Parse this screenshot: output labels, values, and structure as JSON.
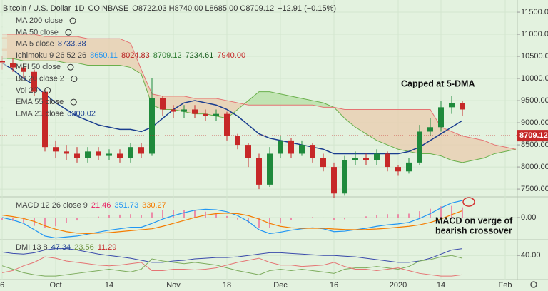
{
  "chart_data": [
    {
      "type": "candlestick",
      "header": {
        "symbol": "Bitcoin / U.S. Dollar",
        "interval": "1D",
        "exchange": "COINBASE",
        "ohlc": "O8722.03 H8740.00 L8685.00 C8709.12",
        "change": "−12.91 (−0.15%)"
      },
      "legend": [
        {
          "label": "MA 200 close",
          "values": [],
          "colors": []
        },
        {
          "label": "MA 50 close",
          "values": [],
          "colors": []
        },
        {
          "label": "MA 5 close",
          "values": [
            "8733.38"
          ],
          "colors": [
            "#1a3d8f"
          ]
        },
        {
          "label": "Ichimoku 9 26 52 26",
          "values": [
            "8650.11",
            "8024.83",
            "8709.12",
            "7234.61",
            "7940.00"
          ],
          "colors": [
            "#2196f3",
            "#b71c1c",
            "#2e7d32",
            "#1b5e20",
            "#c62828"
          ]
        },
        {
          "label": "MFI 50 close",
          "values": [],
          "colors": []
        },
        {
          "label": "BB 20 close 2",
          "values": [],
          "colors": []
        },
        {
          "label": "Vol 20",
          "values": [],
          "colors": []
        },
        {
          "label": "EMA 55 close",
          "values": [],
          "colors": []
        },
        {
          "label": "EMA 21 close",
          "values": [
            "8300.02"
          ],
          "colors": [
            "#1a3d8f"
          ]
        }
      ],
      "categories": [
        "6",
        null,
        null,
        null,
        null,
        "Oct",
        null,
        null,
        null,
        null,
        "14",
        null,
        null,
        null,
        null,
        null,
        "Nov",
        null,
        null,
        null,
        null,
        "18",
        null,
        null,
        null,
        null,
        "Dec",
        null,
        null,
        null,
        null,
        "16",
        null,
        null,
        null,
        null,
        null,
        "2020",
        null,
        null,
        null,
        "14",
        null,
        null,
        null,
        null,
        null,
        "Feb",
        null
      ],
      "open": [
        10400,
        10350,
        10250,
        10150,
        9700,
        8450,
        8350,
        8300,
        8200,
        8350,
        8250,
        8300,
        8200,
        8450,
        8300,
        9550,
        9300,
        9250,
        9300,
        9200,
        9150,
        9200,
        8700,
        8500,
        8200,
        7600,
        8300,
        8600,
        8300,
        8500,
        8200,
        8000,
        7400,
        8150,
        8200,
        8150,
        8300,
        8000,
        7900,
        8100,
        8800,
        8900,
        9350,
        9450,
        null,
        null,
        null,
        null,
        null
      ],
      "high": [
        10500,
        10450,
        10350,
        10200,
        9750,
        8600,
        8500,
        8450,
        8450,
        8450,
        8400,
        8400,
        8550,
        8550,
        10000,
        9600,
        9400,
        9400,
        9400,
        9300,
        9300,
        9250,
        8750,
        8550,
        8300,
        8450,
        8700,
        8650,
        8600,
        8550,
        8300,
        8100,
        8250,
        8350,
        8300,
        8400,
        8350,
        8050,
        8200,
        8950,
        9100,
        9500,
        9600,
        9500,
        null,
        null,
        null,
        null,
        null
      ],
      "low": [
        10200,
        10150,
        10000,
        9600,
        8350,
        8200,
        8150,
        8100,
        8100,
        8150,
        8150,
        8100,
        8100,
        8200,
        8250,
        9150,
        9100,
        9100,
        9100,
        9050,
        9050,
        8600,
        8400,
        8000,
        7500,
        7550,
        8200,
        8200,
        8250,
        8100,
        7900,
        7300,
        7350,
        8050,
        8050,
        8050,
        7900,
        7800,
        7850,
        8050,
        8700,
        8800,
        9200,
        9150,
        null,
        null,
        null,
        null,
        null
      ],
      "close": [
        10350,
        10250,
        10150,
        9700,
        8450,
        8350,
        8300,
        8200,
        8350,
        8250,
        8300,
        8200,
        8450,
        8300,
        9550,
        9300,
        9250,
        9300,
        9200,
        9150,
        9200,
        8700,
        8500,
        8200,
        7600,
        8300,
        8600,
        8300,
        8500,
        8200,
        8000,
        7400,
        8150,
        8200,
        8150,
        8300,
        8000,
        7900,
        8100,
        8800,
        8900,
        9350,
        9450,
        9300,
        null,
        null,
        null,
        null,
        null
      ],
      "up_color": "#1f8a3c",
      "down_color": "#c62828",
      "series": [
        {
          "name": "EMA 21 close",
          "color": "#1a3d8f",
          "values": [
            10350,
            10200,
            10000,
            9850,
            9650,
            9450,
            9300,
            9150,
            9050,
            8950,
            8900,
            8850,
            8850,
            8800,
            8900,
            9100,
            9300,
            9450,
            9500,
            9450,
            9400,
            9300,
            9150,
            8950,
            8750,
            8650,
            8600,
            8550,
            8500,
            8450,
            8400,
            8300,
            8300,
            8300,
            8300,
            8300,
            8300,
            8300,
            8350,
            8450,
            8600,
            8750,
            8900,
            9050,
            null,
            null,
            null,
            null,
            null
          ]
        }
      ],
      "cloud": {
        "up_color": "#b8e0a8",
        "down_color": "#e8cdb0",
        "span_a_color": "#6ab04c",
        "span_b_color": "#e57373",
        "span_a": [
          10450,
          10450,
          10400,
          10400,
          10400,
          10400,
          10350,
          10350,
          10300,
          10300,
          10300,
          10300,
          10250,
          10100,
          9400,
          9300,
          9300,
          9250,
          9200,
          9200,
          9150,
          9100,
          9300,
          9500,
          9700,
          9700,
          9650,
          9600,
          9550,
          9500,
          9450,
          9350,
          9100,
          8900,
          8750,
          8600,
          8500,
          8400,
          8350,
          8300,
          8300,
          8250,
          8150,
          8100,
          8150,
          8200,
          8300,
          8350,
          8400
        ],
        "span_b": [
          11000,
          11000,
          11000,
          11000,
          10950,
          10950,
          10950,
          10950,
          10900,
          10900,
          10900,
          10900,
          10800,
          10200,
          9650,
          9600,
          9600,
          9600,
          9550,
          9550,
          9550,
          9500,
          9450,
          9400,
          9400,
          9400,
          9400,
          9400,
          9400,
          9400,
          9350,
          9350,
          9300,
          9300,
          9300,
          9300,
          9300,
          9300,
          9300,
          9300,
          9300,
          8900,
          8800,
          8700,
          8650,
          8600,
          8500,
          8450,
          8400
        ]
      },
      "ylim": [
        7340,
        11775
      ],
      "yticks": [
        {
          "value": 7500,
          "label": "7500.00"
        },
        {
          "value": 8000,
          "label": "8000.00"
        },
        {
          "value": 8500,
          "label": "8500.00"
        },
        {
          "value": 9000,
          "label": "9000.00"
        },
        {
          "value": 9500,
          "label": "9500.00"
        },
        {
          "value": 10000,
          "label": "10000.00"
        },
        {
          "value": 10500,
          "label": "10500.00"
        },
        {
          "value": 11000,
          "label": "11000.00"
        },
        {
          "value": 11500,
          "label": "11500.00"
        }
      ],
      "price_tag": 8709.12,
      "annotation": "Capped at 5-DMA",
      "grid": true
    },
    {
      "type": "macd",
      "legend": {
        "label": "MACD 12 26 close 9",
        "values": [
          "21.46",
          "351.73",
          "330.27"
        ],
        "colors": [
          "#e91e63",
          "#2196f3",
          "#f57c00"
        ]
      },
      "series": [
        {
          "name": "MACD",
          "color": "#2196f3",
          "values": [
            0,
            -50,
            -120,
            -250,
            -380,
            -420,
            -400,
            -380,
            -340,
            -300,
            -260,
            -230,
            -200,
            -200,
            -120,
            -30,
            40,
            100,
            150,
            170,
            160,
            120,
            40,
            -80,
            -250,
            -330,
            -300,
            -260,
            -230,
            -210,
            -230,
            -290,
            -280,
            -250,
            -220,
            -180,
            -150,
            -130,
            -100,
            -20,
            80,
            200,
            300,
            350,
            null,
            null,
            null,
            null,
            null
          ]
        },
        {
          "name": "Signal",
          "color": "#f57c00",
          "values": [
            50,
            20,
            -20,
            -80,
            -170,
            -240,
            -290,
            -320,
            -330,
            -320,
            -310,
            -290,
            -270,
            -250,
            -230,
            -180,
            -120,
            -60,
            0,
            50,
            80,
            90,
            80,
            40,
            -30,
            -120,
            -180,
            -210,
            -220,
            -220,
            -220,
            -235,
            -245,
            -250,
            -245,
            -235,
            -220,
            -200,
            -180,
            -150,
            -100,
            -30,
            60,
            140,
            null,
            null,
            null,
            null,
            null
          ]
        }
      ],
      "histogram": {
        "color": "#f06292",
        "values": [
          -50,
          -70,
          -100,
          -170,
          -210,
          -180,
          -110,
          -60,
          -10,
          20,
          50,
          60,
          70,
          50,
          110,
          150,
          160,
          160,
          150,
          120,
          80,
          30,
          -40,
          -120,
          -220,
          -210,
          -120,
          -50,
          -10,
          10,
          -10,
          -55,
          -35,
          0,
          25,
          55,
          70,
          70,
          80,
          130,
          180,
          230,
          240,
          210,
          null,
          null,
          null,
          null,
          null
        ]
      },
      "ylim": [
        -440,
        410
      ],
      "yticks": [
        {
          "value": 0,
          "label": "0.00"
        }
      ],
      "annotation": [
        "MACD on verge of",
        "bearish crossover"
      ]
    },
    {
      "type": "line",
      "legend": {
        "label": "DMI 13 8",
        "values": [
          "47.34",
          "23.56",
          "11.29"
        ],
        "colors": [
          "#1a3d8f",
          "#6a8f3a",
          "#c62828"
        ]
      },
      "series": [
        {
          "name": "ADX",
          "color": "#3949ab",
          "values": [
            45,
            43,
            42,
            44,
            48,
            50,
            50,
            48,
            45,
            42,
            40,
            38,
            36,
            33,
            30,
            30,
            32,
            33,
            35,
            36,
            37,
            37,
            38,
            40,
            42,
            44,
            44,
            43,
            42,
            41,
            40,
            40,
            39,
            38,
            36,
            34,
            32,
            30,
            30,
            32,
            36,
            42,
            48,
            50,
            null,
            null,
            null,
            null,
            null
          ]
        },
        {
          "name": "DI+",
          "color": "#7cab5c",
          "values": [
            25,
            20,
            15,
            12,
            10,
            10,
            12,
            14,
            16,
            18,
            20,
            18,
            16,
            20,
            35,
            32,
            30,
            28,
            30,
            28,
            26,
            22,
            18,
            15,
            12,
            18,
            20,
            18,
            20,
            18,
            16,
            14,
            20,
            22,
            22,
            24,
            22,
            20,
            24,
            32,
            34,
            38,
            40,
            36,
            null,
            null,
            null,
            null,
            null
          ]
        },
        {
          "name": "DI-",
          "color": "#e57373",
          "values": [
            15,
            18,
            25,
            30,
            38,
            36,
            32,
            30,
            28,
            26,
            25,
            26,
            28,
            30,
            18,
            18,
            20,
            20,
            19,
            20,
            22,
            26,
            30,
            33,
            36,
            30,
            26,
            26,
            24,
            25,
            26,
            30,
            24,
            20,
            20,
            18,
            20,
            22,
            18,
            14,
            12,
            10,
            10,
            12,
            null,
            null,
            null,
            null,
            null
          ]
        }
      ],
      "ylim": [
        5,
        62
      ],
      "yticks": [
        {
          "value": 40,
          "label": "40.00"
        }
      ]
    }
  ]
}
